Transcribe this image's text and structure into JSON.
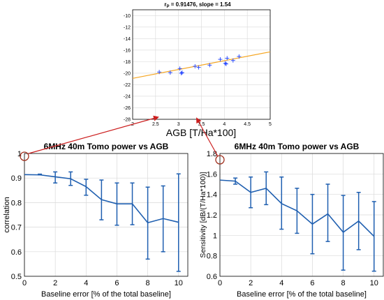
{
  "colors": {
    "primary": "#1f5fb0",
    "fit_line": "#f5a623",
    "scatter_points": "#1a3dff",
    "highlight_circle": "#a0301e",
    "arrow": "#cc1f1f",
    "grid": "#d9d9d9"
  },
  "chart_data": [
    {
      "id": "top",
      "type": "scatter",
      "title": "r_P = 0.91476, slope = 1.54",
      "title_parts": {
        "r": "r",
        "sub": "P",
        "rest": " = 0.91476, slope = 1.54"
      },
      "xlabel": "AGB [T/Ha*100]",
      "ylabel": "",
      "xlim": [
        2,
        5
      ],
      "ylim": [
        -28,
        -9
      ],
      "xticks": [
        "2",
        "2.5",
        "3",
        "3.5",
        "4",
        "4.5",
        "5"
      ],
      "yticks": [
        "-10",
        "-12",
        "-14",
        "-16",
        "-18",
        "-20",
        "-22",
        "-24",
        "-26",
        "-28"
      ],
      "points": [
        {
          "x": 2.58,
          "y": -19.8
        },
        {
          "x": 2.82,
          "y": -19.9
        },
        {
          "x": 3.03,
          "y": -19.2
        },
        {
          "x": 3.06,
          "y": -20.0
        },
        {
          "x": 3.08,
          "y": -19.9
        },
        {
          "x": 3.36,
          "y": -18.8
        },
        {
          "x": 3.44,
          "y": -19.0
        },
        {
          "x": 3.68,
          "y": -18.6
        },
        {
          "x": 3.91,
          "y": -17.6
        },
        {
          "x": 4.02,
          "y": -18.3
        },
        {
          "x": 4.04,
          "y": -18.4
        },
        {
          "x": 4.06,
          "y": -17.4
        },
        {
          "x": 4.19,
          "y": -17.8
        },
        {
          "x": 4.32,
          "y": -17.1
        }
      ],
      "fit": {
        "x": [
          2,
          5
        ],
        "y": [
          -20.9,
          -16.3
        ]
      },
      "grid": true
    },
    {
      "id": "left",
      "type": "line",
      "title": "6MHz 40m Tomo power vs AGB",
      "xlabel": "Baseline error [% of the total baseline]",
      "ylabel": "correlation",
      "xlim": [
        0,
        10.6
      ],
      "ylim": [
        0.5,
        1.0
      ],
      "xticks": [
        "0",
        "2",
        "4",
        "6",
        "8",
        "10"
      ],
      "yticks": [
        "1",
        "0.9",
        "0.8",
        "0.7",
        "0.6",
        "0.5"
      ],
      "x": [
        0,
        1,
        2,
        3,
        4,
        5,
        6,
        7,
        8,
        9,
        10
      ],
      "series": [
        {
          "values": [
            0.914,
            0.913,
            0.905,
            0.897,
            0.865,
            0.812,
            0.795,
            0.795,
            0.718,
            0.735,
            0.72
          ],
          "err_low": [
            0.914,
            0.913,
            0.88,
            0.87,
            0.83,
            0.73,
            0.708,
            0.71,
            0.57,
            0.6,
            0.52
          ],
          "err_high": [
            0.914,
            0.916,
            0.925,
            0.925,
            0.895,
            0.892,
            0.88,
            0.88,
            0.863,
            0.868,
            0.917
          ]
        }
      ],
      "grid": true
    },
    {
      "id": "right",
      "type": "line",
      "title": "6MHz 40m Tomo power vs AGB",
      "xlabel": "Baseline error [% of the total baseline]",
      "ylabel": "Sensitivity [dB/(T/Ha*100)]",
      "xlim": [
        0,
        10.6
      ],
      "ylim": [
        0.6,
        1.8
      ],
      "xticks": [
        "0",
        "2",
        "4",
        "6",
        "8",
        "10"
      ],
      "yticks": [
        "1.8",
        "1.6",
        "1.4",
        "1.2",
        "1",
        "0.8",
        "0.6"
      ],
      "x": [
        0,
        1,
        2,
        3,
        4,
        5,
        6,
        7,
        8,
        9,
        10
      ],
      "series": [
        {
          "values": [
            1.54,
            1.53,
            1.42,
            1.46,
            1.31,
            1.24,
            1.11,
            1.21,
            1.03,
            1.14,
            0.99
          ],
          "err_low": [
            1.54,
            1.5,
            1.27,
            1.3,
            1.06,
            1.02,
            0.82,
            0.94,
            0.66,
            0.86,
            0.65
          ],
          "err_high": [
            1.54,
            1.56,
            1.57,
            1.62,
            1.57,
            1.46,
            1.4,
            1.5,
            1.39,
            1.42,
            1.33
          ]
        }
      ],
      "grid": true
    }
  ]
}
